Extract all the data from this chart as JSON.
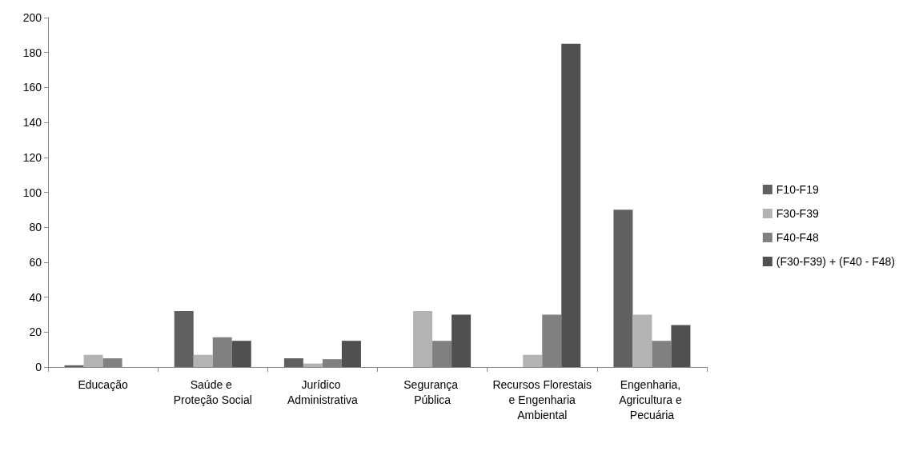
{
  "chart_data": {
    "type": "bar",
    "categories": [
      "Educação",
      "Saúde e Proteção Social",
      "Jurídico Administrativa",
      "Segurança Pública",
      "Recursos Florestais e Engenharia Ambiental",
      "Engenharia, Agricultura e Pecuária"
    ],
    "series": [
      {
        "name": "F10-F19",
        "color": "#606060",
        "values": [
          1,
          32,
          5,
          0,
          0,
          90
        ]
      },
      {
        "name": "F30-F39",
        "color": "#b3b3b3",
        "values": [
          7,
          7,
          2,
          32,
          7,
          30
        ]
      },
      {
        "name": "F40-F48",
        "color": "#808080",
        "values": [
          5,
          17,
          4.5,
          15,
          30,
          15
        ]
      },
      {
        "name": "(F30-F39) + (F40 - F48)",
        "color": "#505050",
        "values": [
          0,
          15,
          15,
          30,
          185,
          24
        ]
      }
    ],
    "ylim": [
      0,
      200
    ],
    "yticks": [
      0,
      20,
      40,
      60,
      80,
      100,
      120,
      140,
      160,
      180,
      200
    ],
    "grid": false,
    "legend": "right"
  }
}
